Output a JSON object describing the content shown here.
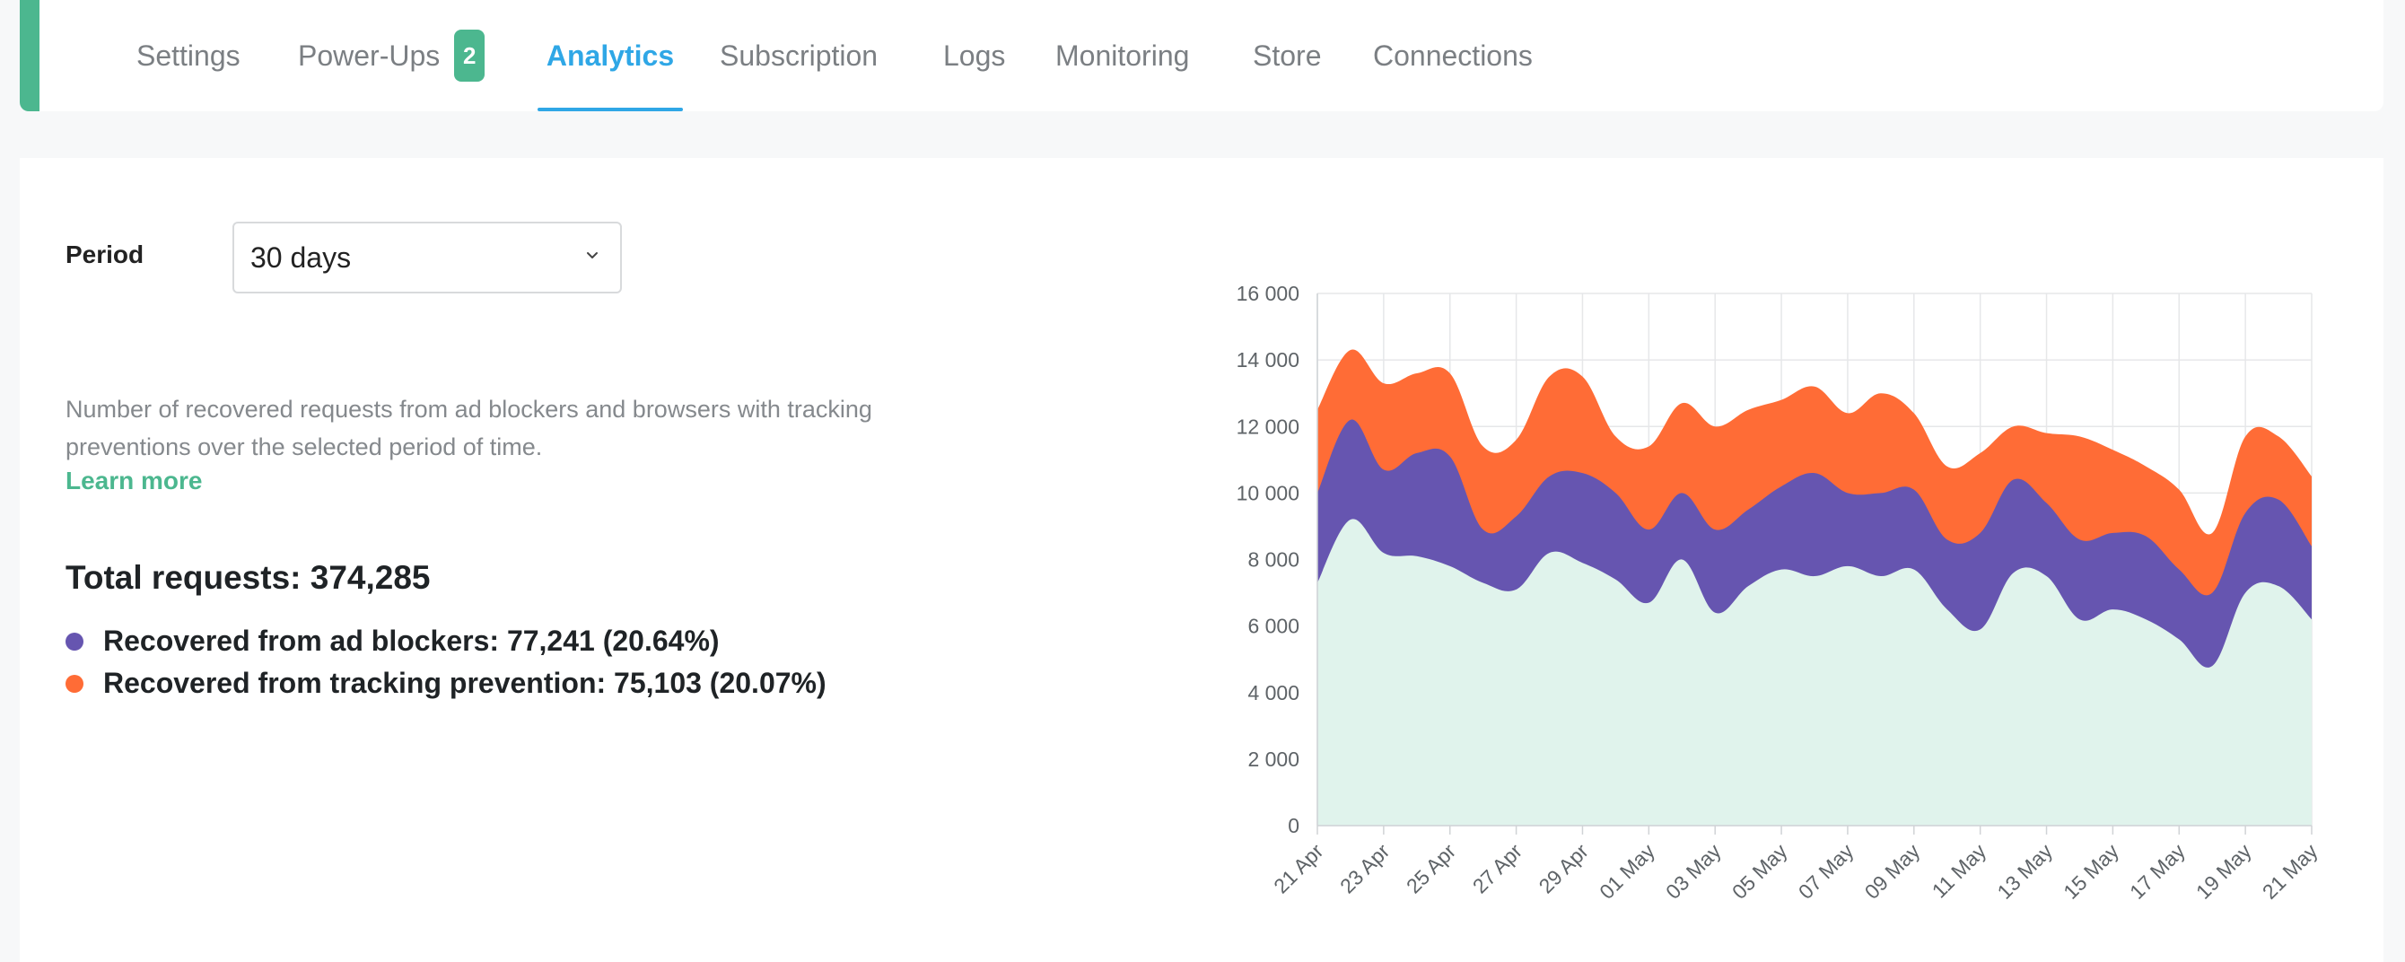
{
  "tabs": [
    {
      "label": "Settings",
      "active": false
    },
    {
      "label": "Power-Ups",
      "active": false,
      "badge": "2"
    },
    {
      "label": "Analytics",
      "active": true
    },
    {
      "label": "Subscription",
      "active": false
    },
    {
      "label": "Logs",
      "active": false
    },
    {
      "label": "Monitoring",
      "active": false
    },
    {
      "label": "Store",
      "active": false
    },
    {
      "label": "Connections",
      "active": false
    }
  ],
  "period": {
    "label": "Period",
    "value": "30 days"
  },
  "description": "Number of recovered requests from ad blockers and browsers with tracking preventions over the selected period of time.",
  "learn_more": "Learn more",
  "summary": {
    "total": "Total requests: 374,285",
    "ad_blockers": "Recovered from ad blockers: 77,241 (20.64%)",
    "tracking": "Recovered from tracking prevention: 75,103 (20.07%)"
  },
  "colors": {
    "accent_green": "#4cb78f",
    "tab_active": "#2fa7e6",
    "series_base": "#e0f3ec",
    "series_ad_blockers": "#6655b0",
    "series_tracking": "#ff6c36"
  },
  "icons": {
    "select": "chevron-down-icon",
    "legend": "dot-icon"
  },
  "chart_data": {
    "type": "area",
    "stacked": true,
    "x": [
      "21 Apr",
      "22 Apr",
      "23 Apr",
      "24 Apr",
      "25 Apr",
      "26 Apr",
      "27 Apr",
      "28 Apr",
      "29 Apr",
      "30 Apr",
      "01 May",
      "02 May",
      "03 May",
      "04 May",
      "05 May",
      "06 May",
      "07 May",
      "08 May",
      "09 May",
      "10 May",
      "11 May",
      "12 May",
      "13 May",
      "14 May",
      "15 May",
      "16 May",
      "17 May",
      "18 May",
      "19 May",
      "20 May",
      "21 May"
    ],
    "x_tick_labels": [
      "21 Apr",
      "23 Apr",
      "25 Apr",
      "27 Apr",
      "29 Apr",
      "01 May",
      "03 May",
      "05 May",
      "07 May",
      "09 May",
      "11 May",
      "13 May",
      "15 May",
      "17 May",
      "19 May",
      "21 May"
    ],
    "y_tick_labels": [
      "0",
      "2 000",
      "4 000",
      "6 000",
      "8 000",
      "10 000",
      "12 000",
      "14 000",
      "16 000"
    ],
    "ylim": [
      0,
      16000
    ],
    "grid": true,
    "legend": "none",
    "series": [
      {
        "color": "#e0f3ec",
        "cumulative": [
          7300,
          9200,
          8200,
          8100,
          7800,
          7300,
          7100,
          8200,
          7900,
          7400,
          6700,
          8000,
          6400,
          7200,
          7700,
          7500,
          7800,
          7500,
          7700,
          6500,
          5900,
          7600,
          7500,
          6200,
          6500,
          6200,
          5600,
          4800,
          7000,
          7200,
          6200
        ]
      },
      {
        "color": "#6655b0",
        "cumulative": [
          10000,
          12200,
          10700,
          11200,
          11100,
          8900,
          9300,
          10500,
          10600,
          10000,
          8900,
          10000,
          8900,
          9500,
          10200,
          10600,
          10000,
          10000,
          10100,
          8600,
          8800,
          10400,
          9700,
          8600,
          8800,
          8700,
          7700,
          7000,
          9400,
          9800,
          8400
        ]
      },
      {
        "color": "#ff6c36",
        "cumulative": [
          12500,
          14300,
          13300,
          13600,
          13600,
          11400,
          11600,
          13500,
          13500,
          11700,
          11400,
          12700,
          12000,
          12500,
          12800,
          13200,
          12400,
          13000,
          12400,
          10800,
          11200,
          12000,
          11800,
          11700,
          11300,
          10800,
          10100,
          8800,
          11700,
          11700,
          10500
        ]
      }
    ]
  }
}
